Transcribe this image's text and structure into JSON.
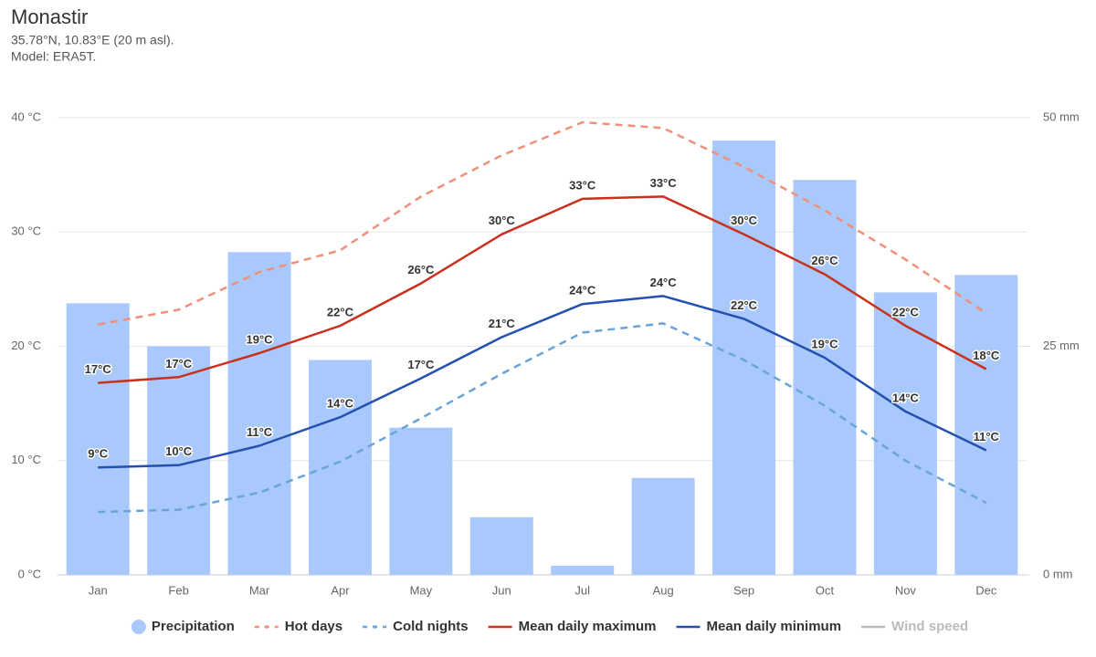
{
  "chart_data": {
    "type": "combo",
    "title": "Monastir",
    "subtitle": [
      "35.78°N, 10.83°E (20 m asl).",
      "Model: ERA5T."
    ],
    "categories": [
      "Jan",
      "Feb",
      "Mar",
      "Apr",
      "May",
      "Jun",
      "Jul",
      "Aug",
      "Sep",
      "Oct",
      "Nov",
      "Dec"
    ],
    "ylim": [
      0,
      40
    ],
    "yticks": [
      {
        "value": 0,
        "label": "0 °C"
      },
      {
        "value": 10,
        "label": "10 °C"
      },
      {
        "value": 20,
        "label": "20 °C"
      },
      {
        "value": 30,
        "label": "30 °C"
      },
      {
        "value": 40,
        "label": "40 °C"
      }
    ],
    "y2lim": [
      0,
      50
    ],
    "y2ticks": [
      {
        "value": 0,
        "label": "0 mm"
      },
      {
        "value": 25,
        "label": "25 mm"
      },
      {
        "value": 50,
        "label": "50 mm"
      }
    ],
    "grid": true,
    "legend": "bottom",
    "series": [
      {
        "name": "Precipitation",
        "type": "bar",
        "axis": "y2",
        "color": "#a9c8fb",
        "values": [
          29.7,
          25.0,
          35.3,
          23.5,
          16.1,
          6.3,
          1.0,
          10.6,
          47.5,
          43.2,
          30.9,
          32.8
        ]
      },
      {
        "name": "Hot days",
        "type": "line",
        "dashed": true,
        "color": "#f0907a",
        "values": [
          21.9,
          23.2,
          26.5,
          28.4,
          33.1,
          36.7,
          39.6,
          39.1,
          35.7,
          31.9,
          27.6,
          22.9
        ]
      },
      {
        "name": "Cold nights",
        "type": "line",
        "dashed": true,
        "color": "#6aa4d8",
        "values": [
          5.5,
          5.7,
          7.2,
          9.9,
          13.7,
          17.6,
          21.2,
          22.0,
          18.8,
          14.8,
          10.0,
          6.3
        ]
      },
      {
        "name": "Mean daily maximum",
        "type": "line",
        "color": "#c9301e",
        "values": [
          16.8,
          17.3,
          19.4,
          21.8,
          25.5,
          29.8,
          32.9,
          33.1,
          29.8,
          26.3,
          21.8,
          18.0
        ],
        "value_labels": [
          "17°C",
          "17°C",
          "19°C",
          "22°C",
          "26°C",
          "30°C",
          "33°C",
          "33°C",
          "30°C",
          "26°C",
          "22°C",
          "18°C"
        ]
      },
      {
        "name": "Mean daily minimum",
        "type": "line",
        "color": "#2450b0",
        "values": [
          9.4,
          9.6,
          11.3,
          13.8,
          17.2,
          20.8,
          23.7,
          24.4,
          22.4,
          19.0,
          14.3,
          10.9
        ],
        "value_labels": [
          "9°C",
          "10°C",
          "11°C",
          "14°C",
          "17°C",
          "21°C",
          "24°C",
          "24°C",
          "22°C",
          "19°C",
          "14°C",
          "11°C"
        ]
      },
      {
        "name": "Wind speed",
        "type": "line",
        "hidden": true,
        "color": "#a0a0a0",
        "values": [
          null,
          null,
          null,
          null,
          null,
          null,
          null,
          null,
          null,
          null,
          null,
          null
        ]
      }
    ]
  }
}
